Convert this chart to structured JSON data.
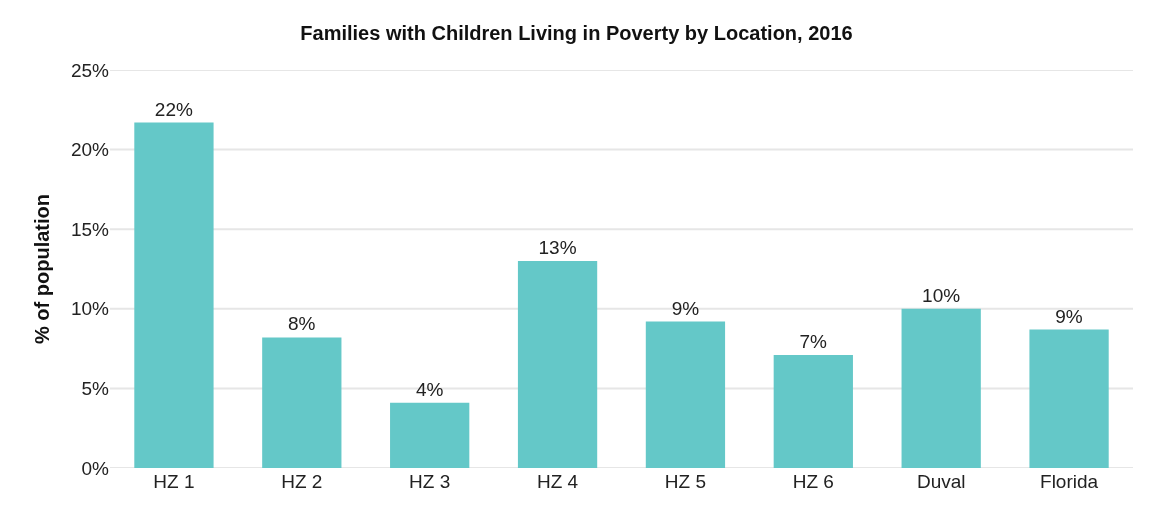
{
  "chart_data": {
    "type": "bar",
    "title": "Families with Children Living in Poverty by Location, 2016",
    "ylabel": "% of population",
    "categories": [
      "HZ 1",
      "HZ 2",
      "HZ 3",
      "HZ 4",
      "HZ 5",
      "HZ 6",
      "Duval",
      "Florida"
    ],
    "values": [
      21.7,
      8.2,
      4.1,
      13.0,
      9.2,
      7.1,
      10.0,
      8.7
    ],
    "value_labels": [
      "22%",
      "8%",
      "4%",
      "13%",
      "9%",
      "7%",
      "10%",
      "9%"
    ],
    "color": "#64c8c8",
    "ylim": [
      0,
      25
    ],
    "yticks": [
      {
        "value": 0,
        "label": "0%"
      },
      {
        "value": 5,
        "label": "5%"
      },
      {
        "value": 10,
        "label": "10%"
      },
      {
        "value": 15,
        "label": "15%"
      },
      {
        "value": 20,
        "label": "20%"
      },
      {
        "value": 25,
        "label": "25%"
      }
    ],
    "grid": "y"
  }
}
